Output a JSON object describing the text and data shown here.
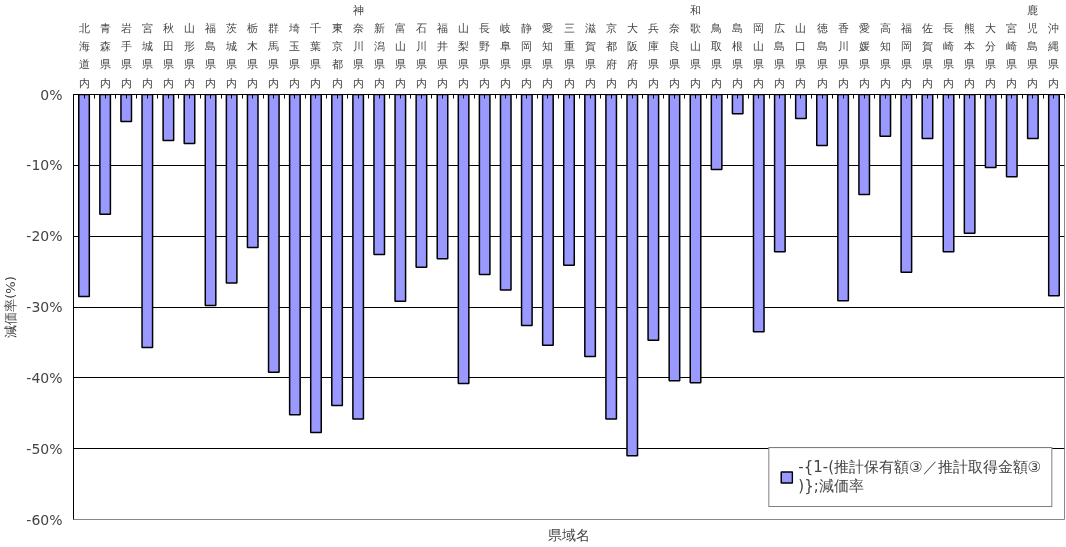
{
  "chart_data": {
    "type": "bar",
    "xlabel": "県域名",
    "ylabel": "減価率(%)",
    "categories": [
      "北海道内",
      "青森県内",
      "岩手県内",
      "宮城県内",
      "秋田県内",
      "山形県内",
      "福島県内",
      "茨城県内",
      "栃木県内",
      "群馬県内",
      "埼玉県内",
      "千葉県内",
      "東京都内",
      "神奈川県内",
      "新潟県内",
      "富山県内",
      "石川県内",
      "福井県内",
      "山梨県内",
      "長野県内",
      "岐阜県内",
      "静岡県内",
      "愛知県内",
      "三重県内",
      "滋賀県内",
      "京都府内",
      "大阪府内",
      "兵庫県内",
      "奈良県内",
      "和歌山県内",
      "鳥取県内",
      "島根県内",
      "岡山県内",
      "広島県内",
      "山口県内",
      "徳島県内",
      "香川県内",
      "愛媛県内",
      "高知県内",
      "福岡県内",
      "佐賀県内",
      "長崎県内",
      "熊本県内",
      "大分県内",
      "宮崎県内",
      "鹿児島県内",
      "沖縄県内"
    ],
    "series": [
      {
        "name": "-{1-(推計保有額③／推計取得金額③)};減価率",
        "color": "#9999ff",
        "values": [
          -28.5,
          -16.9,
          -3.8,
          -35.7,
          -6.5,
          -6.9,
          -29.8,
          -26.6,
          -21.6,
          -39.2,
          -45.2,
          -47.7,
          -43.9,
          -45.8,
          -22.6,
          -29.2,
          -24.4,
          -23.2,
          -40.8,
          -25.4,
          -27.6,
          -32.6,
          -35.4,
          -24.1,
          -37.0,
          -45.8,
          -51.0,
          -34.7,
          -40.4,
          -40.7,
          -10.6,
          -2.7,
          -33.5,
          -22.2,
          -3.4,
          -7.2,
          -29.1,
          -14.1,
          -5.9,
          -25.1,
          -6.2,
          -22.2,
          -19.6,
          -10.3,
          -11.6,
          -6.2,
          -28.4
        ]
      }
    ],
    "ylim": [
      -60,
      0
    ],
    "yticks": [
      {
        "value": -60,
        "label": "-60%"
      },
      {
        "value": -50,
        "label": "-50%"
      },
      {
        "value": -40,
        "label": "-40%"
      },
      {
        "value": -30,
        "label": "-30%"
      },
      {
        "value": -20,
        "label": "-20%"
      },
      {
        "value": -10,
        "label": "-10%"
      },
      {
        "value": 0,
        "label": "0%"
      }
    ],
    "grid": "y",
    "legend": "bottom right"
  }
}
